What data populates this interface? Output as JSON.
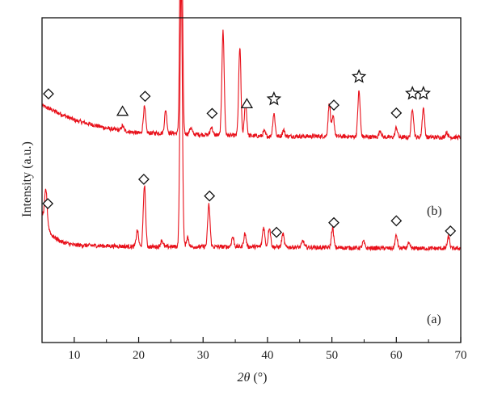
{
  "chart_data": {
    "type": "line",
    "xlabel_var": "2θ",
    "xlabel_unit": "(°)",
    "ylabel": "Intensity (a.u.)",
    "xlim": [
      5,
      70
    ],
    "x_ticks": [
      10,
      20,
      30,
      40,
      50,
      60,
      70
    ],
    "y_ticks_shown": false,
    "grid": false,
    "legend": "none",
    "line_color": "#e8101a",
    "series": [
      {
        "name": "(b)",
        "baseline": [
          [
            5,
            0.73
          ],
          [
            10,
            0.685
          ],
          [
            15,
            0.66
          ],
          [
            20,
            0.645
          ],
          [
            25,
            0.645
          ],
          [
            30,
            0.64
          ],
          [
            40,
            0.635
          ],
          [
            50,
            0.635
          ],
          [
            60,
            0.632
          ],
          [
            70,
            0.632
          ]
        ],
        "peaks": [
          [
            17.5,
            0.015
          ],
          [
            20.9,
            0.08
          ],
          [
            24.2,
            0.07
          ],
          [
            26.6,
            0.91
          ],
          [
            28.1,
            0.02
          ],
          [
            31.3,
            0.025
          ],
          [
            33.1,
            0.32
          ],
          [
            35.7,
            0.27
          ],
          [
            36.6,
            0.1
          ],
          [
            39.5,
            0.015
          ],
          [
            41.0,
            0.07
          ],
          [
            42.5,
            0.02
          ],
          [
            49.6,
            0.1
          ],
          [
            50.2,
            0.06
          ],
          [
            54.2,
            0.14
          ],
          [
            57.5,
            0.02
          ],
          [
            60.0,
            0.03
          ],
          [
            62.5,
            0.09
          ],
          [
            64.2,
            0.09
          ],
          [
            67.8,
            0.015
          ]
        ],
        "markers": [
          {
            "x": 6.0,
            "shape": "diamond"
          },
          {
            "x": 17.5,
            "shape": "triangle"
          },
          {
            "x": 21.0,
            "shape": "diamond"
          },
          {
            "x": 31.4,
            "shape": "diamond"
          },
          {
            "x": 36.8,
            "shape": "triangle"
          },
          {
            "x": 41.0,
            "shape": "star"
          },
          {
            "x": 50.3,
            "shape": "diamond"
          },
          {
            "x": 54.2,
            "shape": "star"
          },
          {
            "x": 60.0,
            "shape": "diamond"
          },
          {
            "x": 62.5,
            "shape": "star"
          },
          {
            "x": 64.2,
            "shape": "star"
          }
        ]
      },
      {
        "name": "(a)",
        "baseline": [
          [
            5,
            0.4
          ],
          [
            6.5,
            0.33
          ],
          [
            8,
            0.31
          ],
          [
            10,
            0.3
          ],
          [
            20,
            0.295
          ],
          [
            30,
            0.295
          ],
          [
            40,
            0.295
          ],
          [
            50,
            0.292
          ],
          [
            60,
            0.29
          ],
          [
            70,
            0.29
          ]
        ],
        "peaks": [
          [
            5.6,
            0.1
          ],
          [
            19.8,
            0.05
          ],
          [
            20.9,
            0.19
          ],
          [
            23.6,
            0.02
          ],
          [
            26.6,
            0.82
          ],
          [
            27.6,
            0.03
          ],
          [
            30.9,
            0.13
          ],
          [
            34.6,
            0.03
          ],
          [
            36.5,
            0.04
          ],
          [
            39.4,
            0.06
          ],
          [
            40.3,
            0.06
          ],
          [
            42.4,
            0.04
          ],
          [
            45.5,
            0.02
          ],
          [
            50.1,
            0.06
          ],
          [
            54.9,
            0.02
          ],
          [
            60.0,
            0.04
          ],
          [
            61.9,
            0.015
          ],
          [
            68.1,
            0.035
          ]
        ],
        "markers": [
          {
            "x": 5.9,
            "shape": "diamond"
          },
          {
            "x": 20.8,
            "shape": "diamond"
          },
          {
            "x": 31.0,
            "shape": "diamond"
          },
          {
            "x": 41.4,
            "shape": "diamond"
          },
          {
            "x": 50.3,
            "shape": "diamond"
          },
          {
            "x": 60.0,
            "shape": "diamond"
          },
          {
            "x": 68.4,
            "shape": "diamond"
          }
        ]
      }
    ]
  }
}
